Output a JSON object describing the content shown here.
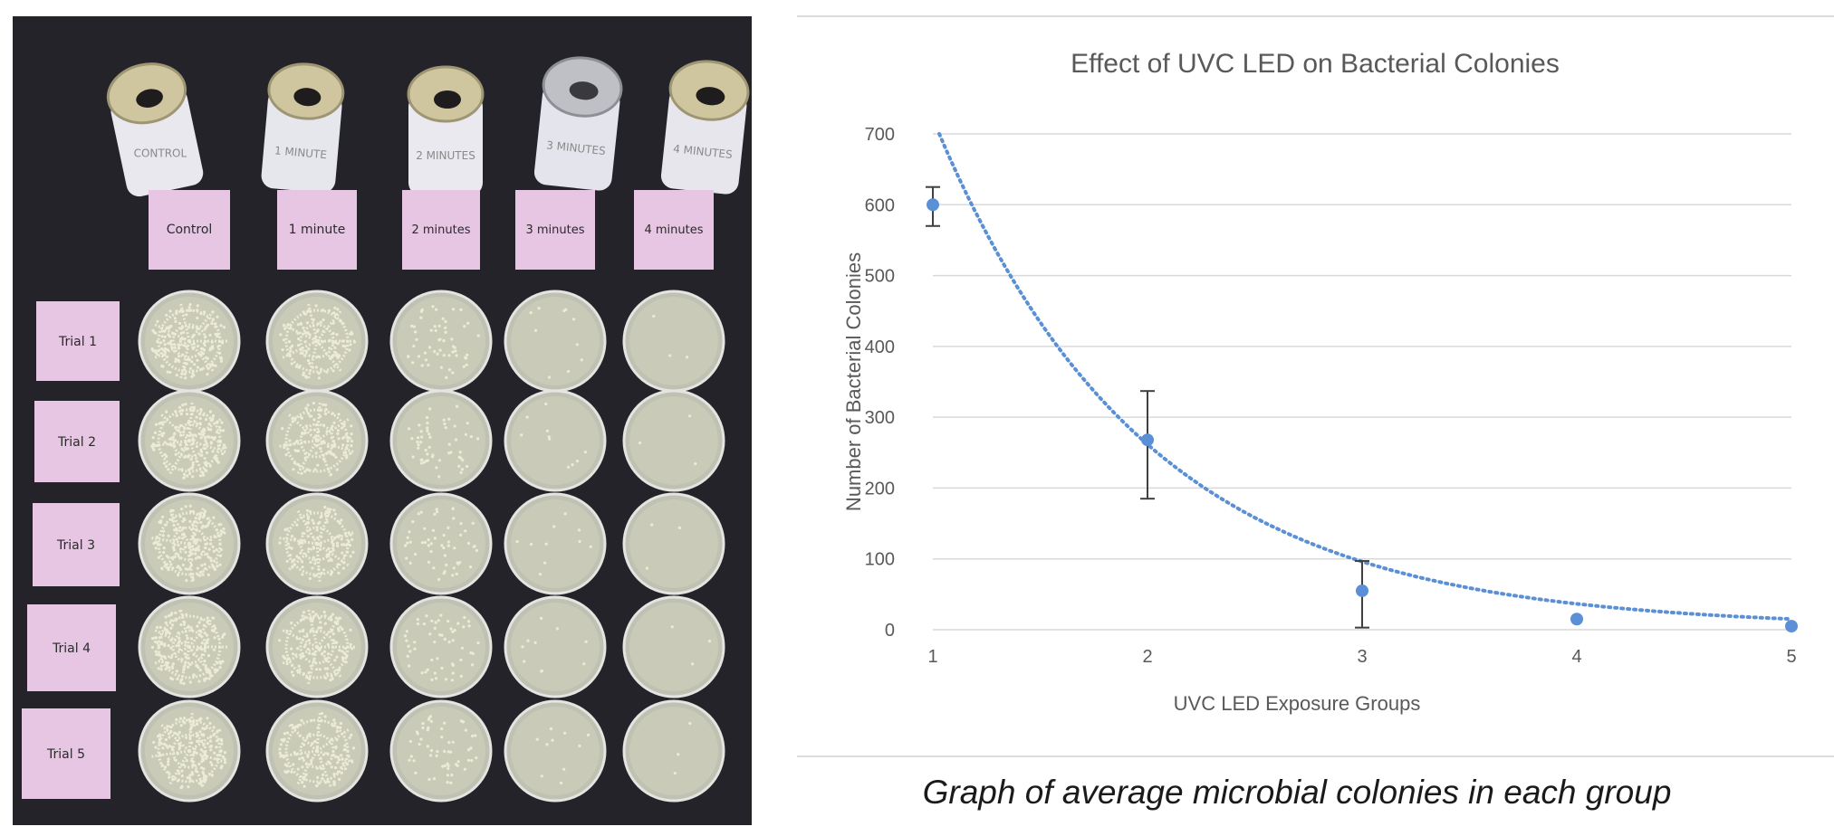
{
  "photo": {
    "group_labels": [
      "Control",
      "1 minute",
      "2 minutes",
      "3 minutes",
      "4 minutes"
    ],
    "can_labels": [
      "CONTROL",
      "1 MINUTE",
      "2 MINUTES",
      "3 MINUTES",
      "4 MINUTES"
    ],
    "trial_labels": [
      "Trial 1",
      "Trial 2",
      "Trial 3",
      "Trial 4",
      "Trial 5"
    ],
    "colors": {
      "background": "#25232a",
      "sticky_note": "#e6c6e3",
      "agar": "#c9cbb8",
      "colony": "#ecebd6"
    }
  },
  "chart_data": {
    "type": "scatter",
    "title": "Effect of UVC LED on Bacterial Colonies",
    "xlabel": "UVC LED Exposure Groups",
    "ylabel": "Number of Bacterial Colonies",
    "x": [
      1,
      2,
      3,
      4,
      5
    ],
    "y": [
      600,
      268,
      55,
      15,
      5
    ],
    "error": [
      [
        570,
        625
      ],
      [
        185,
        337
      ],
      [
        3,
        97
      ],
      null,
      null
    ],
    "xticks": [
      1,
      2,
      3,
      4,
      5
    ],
    "yticks": [
      0,
      100,
      200,
      300,
      400,
      500,
      600,
      700
    ],
    "xlim": [
      1,
      5
    ],
    "ylim": [
      0,
      700
    ],
    "grid": true,
    "trendline": {
      "type": "exponential",
      "style": "dotted",
      "from": 1.03,
      "to": 5,
      "y_start": 700,
      "decay": 0.6,
      "floor": 3
    },
    "colors": {
      "marker": "#5b8fd6",
      "trend": "#5b8fd6",
      "grid": "#d9d9d9",
      "error_bar": "#404040"
    }
  },
  "caption": "Graph of average microbial colonies in each group"
}
